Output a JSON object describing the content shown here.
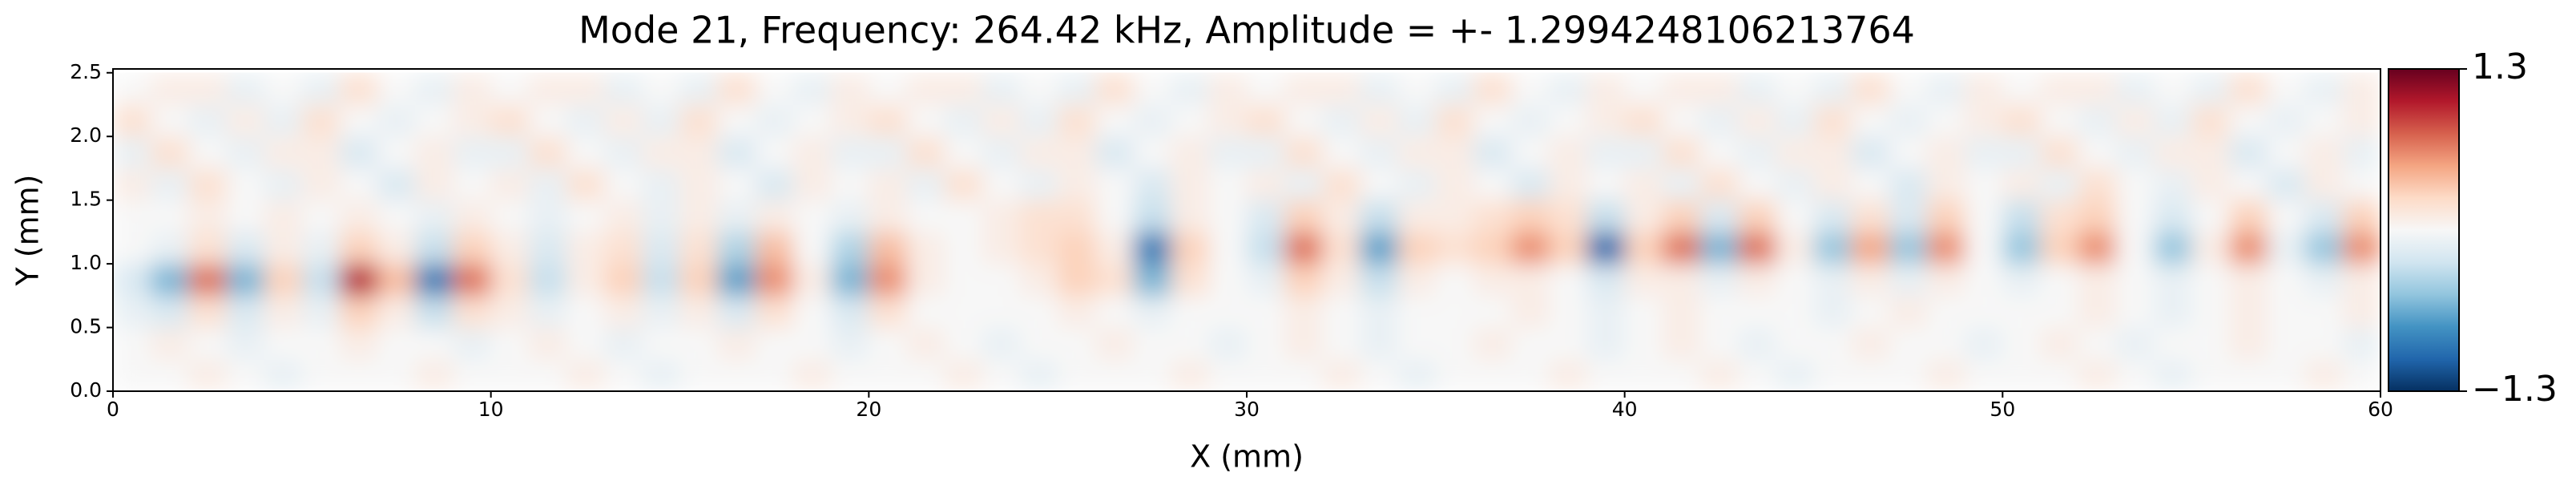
{
  "chart_data": {
    "type": "heatmap",
    "title": "Mode 21, Frequency: 264.42 kHz, Amplitude = +- 1.2994248106213764",
    "xlabel": "X (mm)",
    "ylabel": "Y (mm)",
    "x": [
      0.5,
      1.5,
      2.5,
      3.5,
      4.5,
      5.5,
      6.5,
      7.5,
      8.5,
      9.5,
      10.5,
      11.5,
      12.5,
      13.5,
      14.5,
      15.5,
      16.5,
      17.5,
      18.5,
      19.5,
      20.5,
      21.5,
      22.5,
      23.5,
      24.5,
      25.5,
      26.5,
      27.5,
      28.5,
      29.5,
      30.5,
      31.5,
      32.5,
      33.5,
      34.5,
      35.5,
      36.5,
      37.5,
      38.5,
      39.5,
      40.5,
      41.5,
      42.5,
      43.5,
      44.5,
      45.5,
      46.5,
      47.5,
      48.5,
      49.5,
      50.5,
      51.5,
      52.5,
      53.5,
      54.5,
      55.5,
      56.5,
      57.5,
      58.5,
      59.5
    ],
    "y": [
      0.125,
      0.375,
      0.625,
      0.875,
      1.125,
      1.375,
      1.625,
      1.875,
      2.125,
      2.375
    ],
    "z": [
      [
        0,
        0,
        0.1,
        0,
        -0.1,
        0,
        0,
        0,
        0.1,
        0,
        0,
        0,
        0.1,
        0,
        -0.1,
        0,
        0,
        0,
        0.1,
        0,
        0,
        0,
        0.1,
        0,
        -0.1,
        0,
        0,
        0,
        0.1,
        0,
        0,
        0,
        0.1,
        0,
        -0.1,
        0,
        0,
        0,
        0.1,
        0,
        0,
        0,
        0.1,
        0,
        -0.1,
        0,
        0,
        0,
        0.1,
        0,
        0,
        0,
        0.1,
        0,
        -0.1,
        0,
        0,
        0,
        0.1,
        0
      ],
      [
        0,
        0.1,
        0,
        -0.1,
        0,
        0,
        0.1,
        0,
        0,
        -0.1,
        0,
        0.1,
        0,
        -0.1,
        0,
        0,
        0.1,
        0,
        0,
        -0.1,
        0,
        0.1,
        0,
        -0.1,
        0,
        0,
        0.1,
        0,
        0,
        -0.1,
        0,
        0.1,
        0,
        -0.1,
        0,
        0,
        0.1,
        0,
        0,
        -0.1,
        0,
        0.1,
        0,
        -0.1,
        0,
        0,
        0.1,
        0,
        0,
        -0.1,
        0,
        0.1,
        0,
        -0.1,
        0,
        0,
        0.1,
        0,
        0,
        -0.1
      ],
      [
        -0.1,
        -0.2,
        0.2,
        -0.2,
        0.1,
        -0.1,
        0.3,
        0.1,
        -0.3,
        0.2,
        0.1,
        -0.1,
        0,
        0.1,
        -0.1,
        0.1,
        -0.2,
        0.2,
        0,
        -0.2,
        0.2,
        0,
        0,
        0,
        0,
        0.1,
        0,
        -0.1,
        0,
        0,
        0,
        0.1,
        0,
        -0.1,
        0,
        0,
        0,
        0.1,
        0,
        -0.1,
        0,
        0.1,
        0,
        0,
        0,
        -0.1,
        0,
        0.1,
        0,
        0,
        0,
        0,
        0.1,
        0,
        -0.1,
        0,
        0.1,
        0,
        0,
        0.1
      ],
      [
        -0.2,
        -0.6,
        0.7,
        -0.6,
        0.3,
        -0.3,
        1.0,
        0.4,
        -0.9,
        0.7,
        0.2,
        -0.3,
        0.1,
        0.3,
        -0.3,
        0.3,
        -0.7,
        0.6,
        0.1,
        -0.6,
        0.6,
        0.1,
        0,
        0,
        0.1,
        0.3,
        0.2,
        -0.6,
        0.2,
        0,
        -0.1,
        0.3,
        0.1,
        -0.3,
        0.1,
        0,
        0.1,
        0.1,
        0,
        -0.2,
        0.1,
        0.1,
        -0.1,
        0.1,
        0,
        -0.1,
        0.1,
        -0.1,
        0.1,
        0,
        -0.1,
        0,
        0.1,
        0,
        -0.1,
        0,
        0.1,
        0,
        -0.1,
        0.1
      ],
      [
        0,
        -0.1,
        0.2,
        -0.2,
        0.1,
        -0.1,
        0.3,
        0.1,
        -0.3,
        0.3,
        0.1,
        -0.2,
        0.1,
        0.2,
        -0.2,
        0.2,
        -0.4,
        0.4,
        0,
        -0.4,
        0.4,
        0.1,
        0,
        0.1,
        0.2,
        0.3,
        0.1,
        -0.9,
        0.3,
        0,
        -0.3,
        0.7,
        0.2,
        -0.7,
        0.3,
        0.2,
        0.3,
        0.6,
        0.3,
        -1.0,
        0.3,
        0.7,
        -0.6,
        0.7,
        0.1,
        -0.5,
        0.5,
        -0.5,
        0.6,
        0,
        -0.5,
        0.3,
        0.6,
        0,
        -0.5,
        0.1,
        0.6,
        -0.1,
        -0.5,
        0.6
      ],
      [
        0,
        0,
        0.1,
        0,
        0.1,
        0,
        0.1,
        0,
        -0.1,
        0.1,
        0,
        -0.1,
        0,
        0.1,
        -0.1,
        0.1,
        -0.1,
        0.1,
        0,
        -0.1,
        0.1,
        0,
        0,
        0.1,
        0.2,
        0.2,
        0,
        -0.3,
        0.1,
        0,
        -0.2,
        0.3,
        0.1,
        -0.3,
        0.1,
        0.1,
        0.2,
        0.3,
        0.2,
        -0.3,
        0.1,
        0.3,
        -0.2,
        0.3,
        0,
        -0.2,
        0.2,
        -0.2,
        0.3,
        0,
        -0.3,
        0.2,
        0.3,
        0,
        -0.2,
        0,
        0.3,
        0,
        -0.2,
        0.3
      ],
      [
        0.1,
        -0.1,
        0.2,
        0,
        -0.1,
        0.1,
        0,
        -0.2,
        0.1,
        0,
        0.1,
        -0.1,
        0.2,
        0,
        -0.1,
        0.1,
        0,
        -0.2,
        0.1,
        0,
        0.1,
        -0.1,
        0.2,
        0,
        -0.1,
        0.1,
        0,
        -0.2,
        0.1,
        0,
        0.1,
        -0.1,
        0.2,
        0,
        -0.1,
        0.1,
        0,
        -0.2,
        0.1,
        0,
        0.1,
        -0.1,
        0.2,
        0,
        -0.1,
        0.1,
        0,
        -0.2,
        0.1,
        0,
        0.1,
        -0.1,
        0.2,
        0,
        -0.1,
        0.1,
        0,
        -0.2,
        0.1,
        0
      ],
      [
        -0.1,
        0.2,
        0,
        -0.1,
        0.1,
        0.1,
        -0.2,
        0,
        0.1,
        -0.1,
        -0.1,
        0.2,
        0,
        -0.1,
        0.1,
        0.1,
        -0.2,
        0,
        0.1,
        -0.1,
        -0.1,
        0.2,
        0,
        -0.1,
        0.1,
        0.1,
        -0.2,
        0,
        0.1,
        -0.1,
        -0.1,
        0.2,
        0,
        -0.1,
        0.1,
        0.1,
        -0.2,
        0,
        0.1,
        -0.1,
        -0.1,
        0.2,
        0,
        -0.1,
        0.1,
        0.1,
        -0.2,
        0,
        0.1,
        -0.1,
        -0.1,
        0.2,
        0,
        -0.1,
        0.1,
        0.1,
        -0.2,
        0,
        0.1,
        -0.1
      ],
      [
        0.2,
        0,
        -0.1,
        0.1,
        -0.1,
        0.2,
        0,
        -0.1,
        0,
        0.1,
        0.2,
        0,
        -0.1,
        0.1,
        -0.1,
        0.2,
        0,
        -0.1,
        0,
        0.1,
        0.2,
        0,
        -0.1,
        0.1,
        -0.1,
        0.2,
        0,
        -0.1,
        0,
        0.1,
        0.2,
        0,
        -0.1,
        0.1,
        -0.1,
        0.2,
        0,
        -0.1,
        0,
        0.1,
        0.2,
        0,
        -0.1,
        0.1,
        -0.1,
        0.2,
        0,
        -0.1,
        0,
        0.1,
        0.2,
        0,
        -0.1,
        0.1,
        -0.1,
        0.2,
        0,
        -0.1,
        0,
        0.1
      ],
      [
        0,
        0.1,
        0.1,
        -0.1,
        0,
        -0.1,
        0.2,
        0,
        -0.1,
        0.1,
        0,
        0.1,
        0.1,
        -0.1,
        0,
        -0.1,
        0.2,
        0,
        -0.1,
        0.1,
        0,
        0.1,
        0.1,
        -0.1,
        0,
        -0.1,
        0.2,
        0,
        -0.1,
        0.1,
        0,
        0.1,
        0.1,
        -0.1,
        0,
        -0.1,
        0.2,
        0,
        -0.1,
        0.1,
        0,
        0.1,
        0.1,
        -0.1,
        0,
        -0.1,
        0.2,
        0,
        -0.1,
        0.1,
        0,
        0.1,
        0.1,
        -0.1,
        0,
        -0.1,
        0.2,
        0,
        -0.1,
        0.1
      ]
    ],
    "xlim": [
      0,
      60
    ],
    "ylim": [
      0,
      2.53
    ],
    "xticks": [
      0,
      10,
      20,
      30,
      40,
      50,
      60
    ],
    "yticks": [
      {
        "value": 0,
        "label": "0.0"
      },
      0.5,
      {
        "value": 1,
        "label": "1.0"
      },
      1.5,
      {
        "value": 2,
        "label": "2.0"
      },
      2.5
    ],
    "clim": [
      -1.2994248106213764,
      1.2994248106213764
    ],
    "cticks": [
      {
        "value": 1.2994248106213764,
        "label": "1.3"
      },
      {
        "value": -1.2994248106213764,
        "label": "−1.3"
      }
    ],
    "colormap": [
      "#053061",
      "#2166ac",
      "#4393c3",
      "#92c5de",
      "#d1e5f0",
      "#f7f7f7",
      "#fddbc7",
      "#f4a582",
      "#d6604d",
      "#b2182b",
      "#67001f"
    ]
  }
}
